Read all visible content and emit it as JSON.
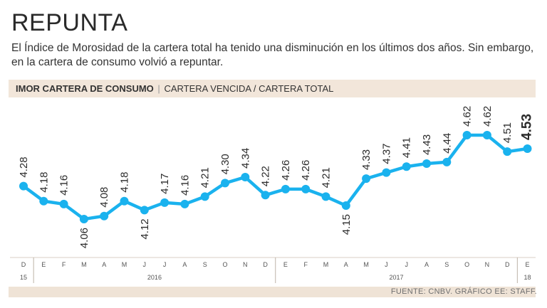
{
  "header": {
    "title": "REPUNTA",
    "subtitle": "El Índice de Morosidad de la cartera total ha tenido una disminución en los últimos dos años. Sin embargo, en la cartera de consumo volvió a repuntar."
  },
  "band": {
    "bold": "IMOR CARTERA DE CONSUMO",
    "separator": "|",
    "rest": "CARTERA VENCIDA / CARTERA TOTAL"
  },
  "footer": {
    "source": "FUENTE: CNBV.  GRÁFICO EE: STAFF."
  },
  "colors": {
    "line": "#1ab2ee",
    "band": "#f2e6da",
    "text": "#333333"
  },
  "chart_data": {
    "type": "line",
    "title": "IMOR CARTERA DE CONSUMO",
    "subtitle": "CARTERA VENCIDA / CARTERA TOTAL",
    "categories": [
      "D",
      "E",
      "F",
      "M",
      "A",
      "M",
      "J",
      "J",
      "A",
      "S",
      "O",
      "N",
      "D",
      "E",
      "F",
      "M",
      "A",
      "M",
      "J",
      "J",
      "A",
      "S",
      "O",
      "N",
      "D",
      "E"
    ],
    "year_labels": [
      {
        "label": "15",
        "index": 0
      },
      {
        "label": "2016",
        "index": 6.5
      },
      {
        "label": "2017",
        "index": 18.5
      },
      {
        "label": "18",
        "index": 25
      }
    ],
    "year_dividers": [
      0.5,
      12.5,
      24.5
    ],
    "values": [
      4.28,
      4.18,
      4.16,
      4.06,
      4.08,
      4.18,
      4.12,
      4.17,
      4.16,
      4.21,
      4.3,
      4.34,
      4.22,
      4.26,
      4.26,
      4.21,
      4.15,
      4.33,
      4.37,
      4.41,
      4.43,
      4.44,
      4.62,
      4.62,
      4.51,
      4.53
    ],
    "value_labels": [
      "4.28",
      "4.18",
      "4.16",
      "4.06",
      "4.08",
      "4.18",
      "4.12",
      "4.17",
      "4.16",
      "4.21",
      "4.30",
      "4.34",
      "4.22",
      "4.26",
      "4.26",
      "4.21",
      "4.15",
      "4.33",
      "4.37",
      "4.41",
      "4.43",
      "4.44",
      "4.62",
      "4.62",
      "4.51",
      "4.53"
    ],
    "ylim": [
      4.0,
      4.7
    ],
    "xlabel": "",
    "ylabel": ""
  }
}
